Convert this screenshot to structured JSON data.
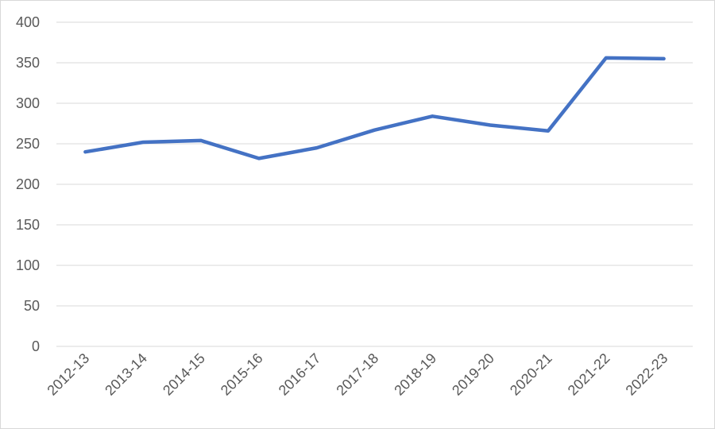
{
  "chart_data": {
    "type": "line",
    "title": "",
    "xlabel": "",
    "ylabel": "",
    "categories": [
      "2012-13",
      "2013-14",
      "2014-15",
      "2015-16",
      "2016-17",
      "2017-18",
      "2018-19",
      "2019-20",
      "2020-21",
      "2021-22",
      "2022-23"
    ],
    "series": [
      {
        "values": [
          240,
          252,
          254,
          232,
          245,
          267,
          284,
          273,
          266,
          356,
          355
        ],
        "color": "#4472c4"
      }
    ],
    "ylim": [
      0,
      400
    ],
    "yticks": [
      0,
      50,
      100,
      150,
      200,
      250,
      300,
      350,
      400
    ],
    "grid": true,
    "legend": "none"
  }
}
